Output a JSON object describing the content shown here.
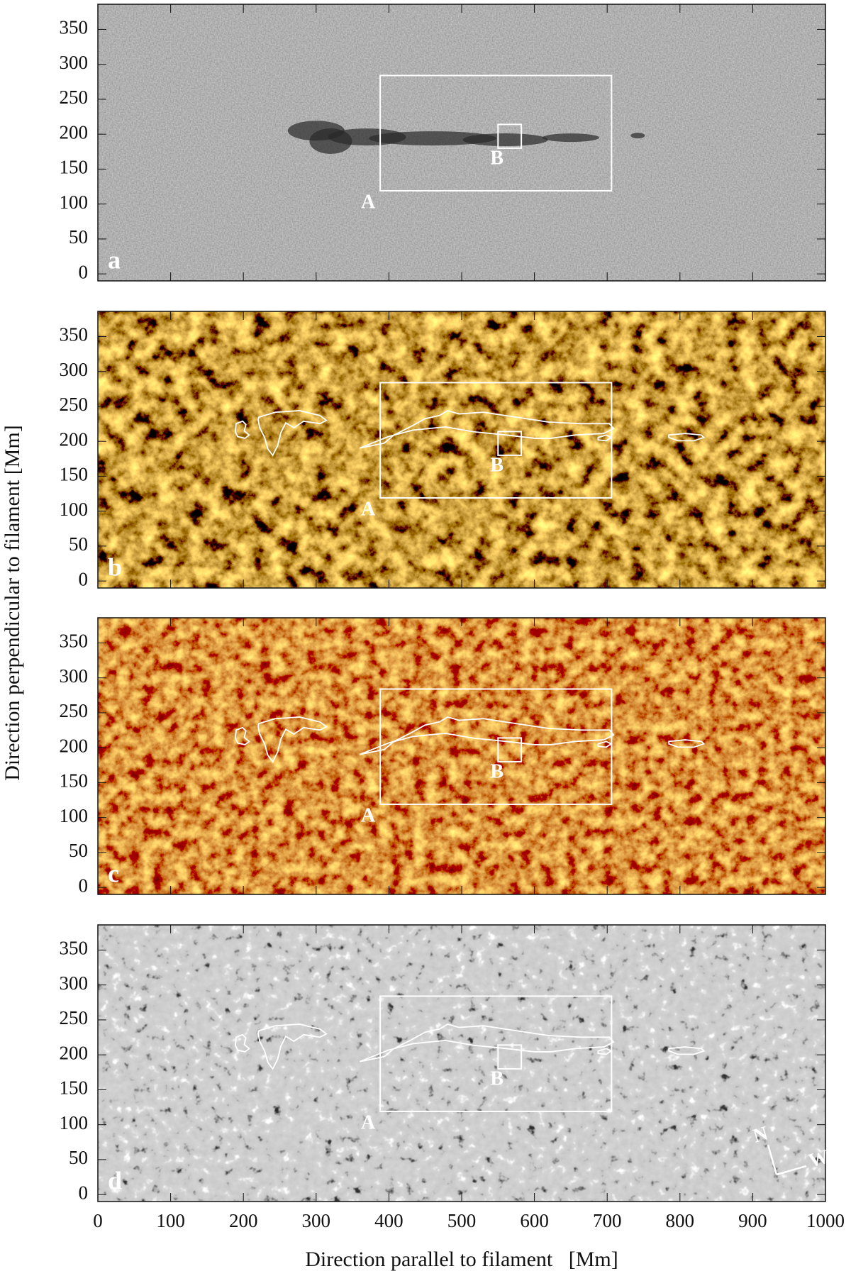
{
  "chart_data": {
    "type": "image_panels",
    "xlabel": "Direction parallel to filament   [Mm]",
    "ylabel": "Direction perpendicular to filament [Mm]",
    "xlim": [
      0,
      1000
    ],
    "ylim": [
      -10,
      386
    ],
    "xticks": [
      0,
      100,
      200,
      300,
      400,
      500,
      600,
      700,
      800,
      900,
      1000
    ],
    "yticks": [
      0,
      50,
      100,
      150,
      200,
      250,
      300,
      350
    ],
    "panels": [
      "a",
      "b",
      "c",
      "d"
    ],
    "regions": [
      {
        "label": "A",
        "xlim": [
          388,
          706
        ],
        "ylim": [
          119,
          284
        ]
      },
      {
        "label": "B",
        "xlim": [
          550,
          582
        ],
        "ylim": [
          180,
          214
        ]
      }
    ],
    "compass": [
      "N",
      "W"
    ]
  }
}
